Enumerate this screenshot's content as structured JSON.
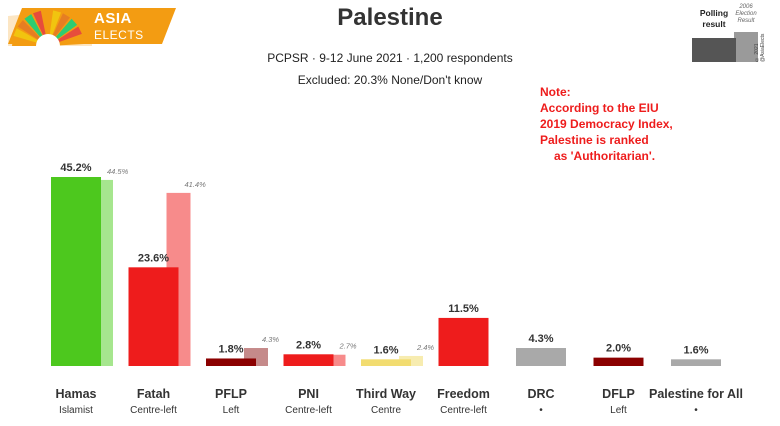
{
  "logo": {
    "word1": "ASIA",
    "word2": "ELECTS",
    "colors": [
      "#f39c12",
      "#f1c40f",
      "#e67e22",
      "#2ecc71",
      "#e74c3c"
    ]
  },
  "legend": {
    "polling_label": "Polling result",
    "previous_label": "2006 Election Result",
    "copyright": "© 2021 @AsiaElects"
  },
  "note": {
    "lines": [
      "Note:",
      "According to the EIU",
      "2019 Democracy Index,",
      "Palestine is ranked",
      "as 'Authoritarian'."
    ]
  },
  "chart_data": {
    "type": "bar",
    "title": "Palestine",
    "subtitle": "PCPSR · 9-12 June 2021 · 1,200 respondents",
    "excluded": "Excluded: 20.3% None/Don't know",
    "ylim": [
      0,
      50
    ],
    "grid": false,
    "categories": [
      "Hamas",
      "Fatah",
      "PFLP",
      "PNI",
      "Third Way",
      "Freedom",
      "DRC",
      "DFLP",
      "Palestine for All"
    ],
    "subtitles": [
      "Islamist",
      "Centre-left",
      "Left",
      "Centre-left",
      "Centre",
      "Centre-left",
      "•",
      "Left",
      "•"
    ],
    "series": [
      {
        "name": "Polling result",
        "values": [
          45.2,
          23.6,
          1.8,
          2.8,
          1.6,
          11.5,
          4.3,
          2.0,
          1.6
        ],
        "labels": [
          "45.2%",
          "23.6%",
          "1.8%",
          "2.8%",
          "1.6%",
          "11.5%",
          "4.3%",
          "2.0%",
          "1.6%"
        ],
        "colors": [
          "#4dc81e",
          "#ee1c1c",
          "#8b0000",
          "#ee1c1c",
          "#f2dc70",
          "#ee1c1c",
          "#a9a9a9",
          "#8b0000",
          "#a9a9a9"
        ]
      },
      {
        "name": "2006 Election Result",
        "values": [
          44.5,
          41.4,
          4.3,
          2.7,
          2.4,
          null,
          null,
          null,
          null
        ],
        "labels": [
          "44.5%",
          "41.4%",
          "4.3%",
          "2.7%",
          "2.4%",
          "",
          "",
          "",
          ""
        ],
        "colors": [
          "#a6e68e",
          "#f78b8b",
          "#c58a8a",
          "#f78b8b",
          "#f7ecb0",
          "",
          "",
          "",
          ""
        ]
      }
    ]
  }
}
